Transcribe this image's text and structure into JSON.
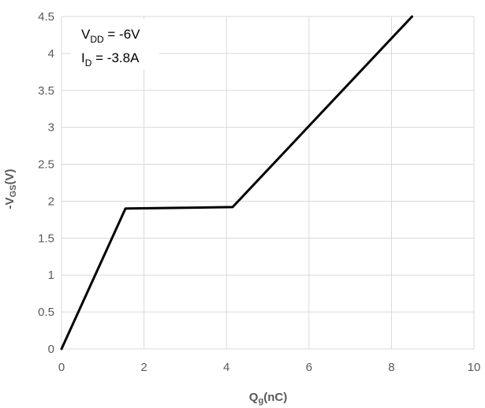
{
  "chart_data": {
    "type": "line",
    "title": "",
    "xlabel": {
      "main": "Q",
      "sub": "g",
      "rest": "(nC)"
    },
    "ylabel": {
      "pre": "-V",
      "sub": "GS",
      "rest": "(V)"
    },
    "xlim": [
      0,
      10
    ],
    "ylim": [
      0,
      4.5
    ],
    "x_ticks": [
      "0",
      "2",
      "4",
      "6",
      "8",
      "10"
    ],
    "y_ticks": [
      "0",
      "0.5",
      "1",
      "1.5",
      "2",
      "2.5",
      "3",
      "3.5",
      "4",
      "4.5"
    ],
    "grid": true,
    "legend": "none",
    "annotations": [
      {
        "main": "V",
        "sub": "DD",
        "rest": " = -6V"
      },
      {
        "main": "I",
        "sub": "D",
        "rest": " = -3.8A"
      }
    ],
    "series": [
      {
        "color": "#000000",
        "points": [
          [
            0,
            0
          ],
          [
            1.55,
            1.9
          ],
          [
            4.15,
            1.92
          ],
          [
            8.5,
            4.5
          ]
        ]
      }
    ]
  }
}
